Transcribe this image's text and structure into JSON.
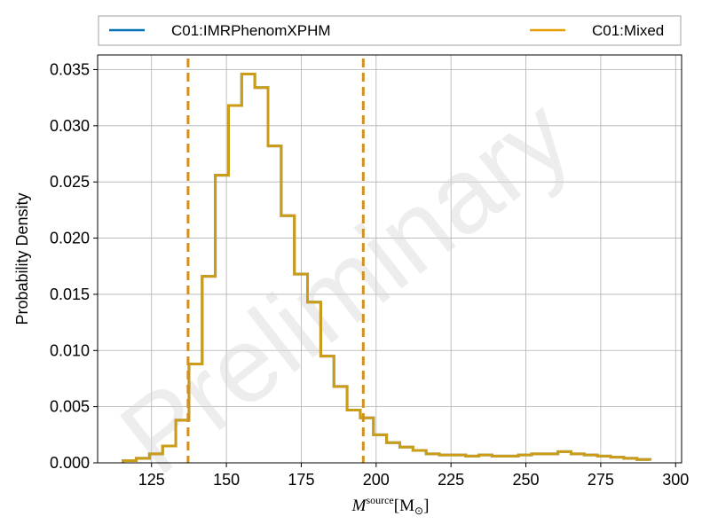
{
  "chart_data": {
    "type": "step-histogram",
    "xlabel": "M^source [M_⊙]",
    "xlabel_main": "M",
    "xlabel_sup": "source",
    "xlabel_unit": "[M",
    "xlabel_unit_sub": "⊙",
    "xlabel_close": "]",
    "ylabel": "Probability Density",
    "xlim": [
      107,
      302
    ],
    "ylim": [
      0,
      0.0363
    ],
    "xticks": [
      125,
      150,
      175,
      200,
      225,
      250,
      275,
      300
    ],
    "yticks": [
      0.0,
      0.005,
      0.01,
      0.015,
      0.02,
      0.025,
      0.03,
      0.035
    ],
    "ytick_labels": [
      "0.000",
      "0.005",
      "0.010",
      "0.015",
      "0.020",
      "0.025",
      "0.030",
      "0.035"
    ],
    "grid": true,
    "legend_placement": "above",
    "watermark": "Preliminary",
    "bin_edges": [
      115.5,
      119.9,
      124.3,
      128.7,
      133.1,
      137.5,
      141.9,
      146.3,
      150.7,
      155.1,
      159.5,
      163.9,
      168.3,
      172.7,
      177.1,
      181.5,
      185.9,
      190.3,
      194.7,
      199.1,
      203.5,
      207.9,
      212.3,
      216.7,
      221.1,
      225.5,
      229.9,
      234.3,
      238.7,
      243.1,
      247.5,
      251.9,
      256.3,
      260.7,
      265.1,
      269.5,
      273.9,
      278.3,
      282.7,
      287.1,
      291.5
    ],
    "series": [
      {
        "name": "C01:IMRPhenomXPHM",
        "color": "#0072b2",
        "values": [
          0.0002,
          0.0004,
          0.0008,
          0.0015,
          0.0038,
          0.0088,
          0.0166,
          0.0256,
          0.0318,
          0.0346,
          0.0334,
          0.0282,
          0.022,
          0.0168,
          0.0143,
          0.0095,
          0.0068,
          0.0047,
          0.004,
          0.0025,
          0.0018,
          0.0014,
          0.0011,
          0.0008,
          0.0007,
          0.0007,
          0.0006,
          0.0007,
          0.0006,
          0.0006,
          0.0007,
          0.0008,
          0.0008,
          0.001,
          0.0008,
          0.0007,
          0.0006,
          0.0005,
          0.0004,
          0.0003,
          0.0002
        ]
      },
      {
        "name": "C01:Mixed",
        "color": "#e69f00",
        "values": [
          0.0002,
          0.0004,
          0.0008,
          0.0015,
          0.0038,
          0.0088,
          0.0166,
          0.0256,
          0.0318,
          0.0346,
          0.0334,
          0.0282,
          0.022,
          0.0168,
          0.0143,
          0.0095,
          0.0068,
          0.0047,
          0.004,
          0.0025,
          0.0018,
          0.0014,
          0.0011,
          0.0008,
          0.0007,
          0.0007,
          0.0006,
          0.0007,
          0.0006,
          0.0006,
          0.0007,
          0.0008,
          0.0008,
          0.001,
          0.0008,
          0.0007,
          0.0006,
          0.0005,
          0.0004,
          0.0003,
          0.0002
        ]
      }
    ],
    "credible_interval_lines": [
      137.2,
      195.7
    ]
  }
}
